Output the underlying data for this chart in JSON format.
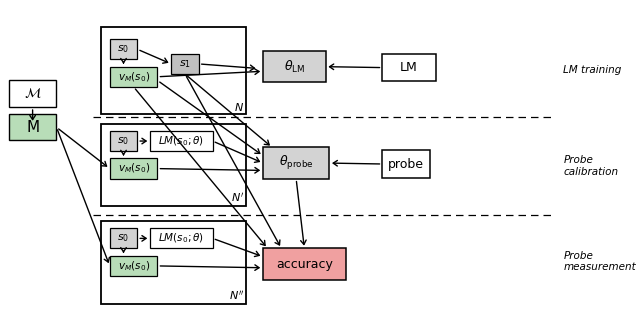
{
  "fig_width": 6.4,
  "fig_height": 3.28,
  "dpi": 100,
  "colors": {
    "white": "#ffffff",
    "light_gray": "#d3d3d3",
    "mid_gray": "#c0c0c0",
    "green_light": "#b8ddb8",
    "red_light": "#f0a0a0",
    "black": "#000000"
  },
  "labels": {
    "M_script": "$\\mathcal{M}$",
    "M": "M",
    "s0": "$s_0$",
    "s1": "$s_1$",
    "vMs0": "$v_M(s_0)$",
    "LMs0theta": "$LM(s_0;\\theta)$",
    "theta_LM": "$\\theta_{\\rm{LM}}$",
    "theta_probe": "$\\theta_{\\rm{probe}}$",
    "LM": "LM",
    "probe": "probe",
    "accuracy": "accuracy",
    "N": "$N$",
    "Nprime": "$N'$",
    "Ndprime": "$N''$",
    "LM_training": "LM training",
    "Probe_calibration": "Probe\ncalibration",
    "Probe_measurement": "Probe\nmeasurement"
  }
}
